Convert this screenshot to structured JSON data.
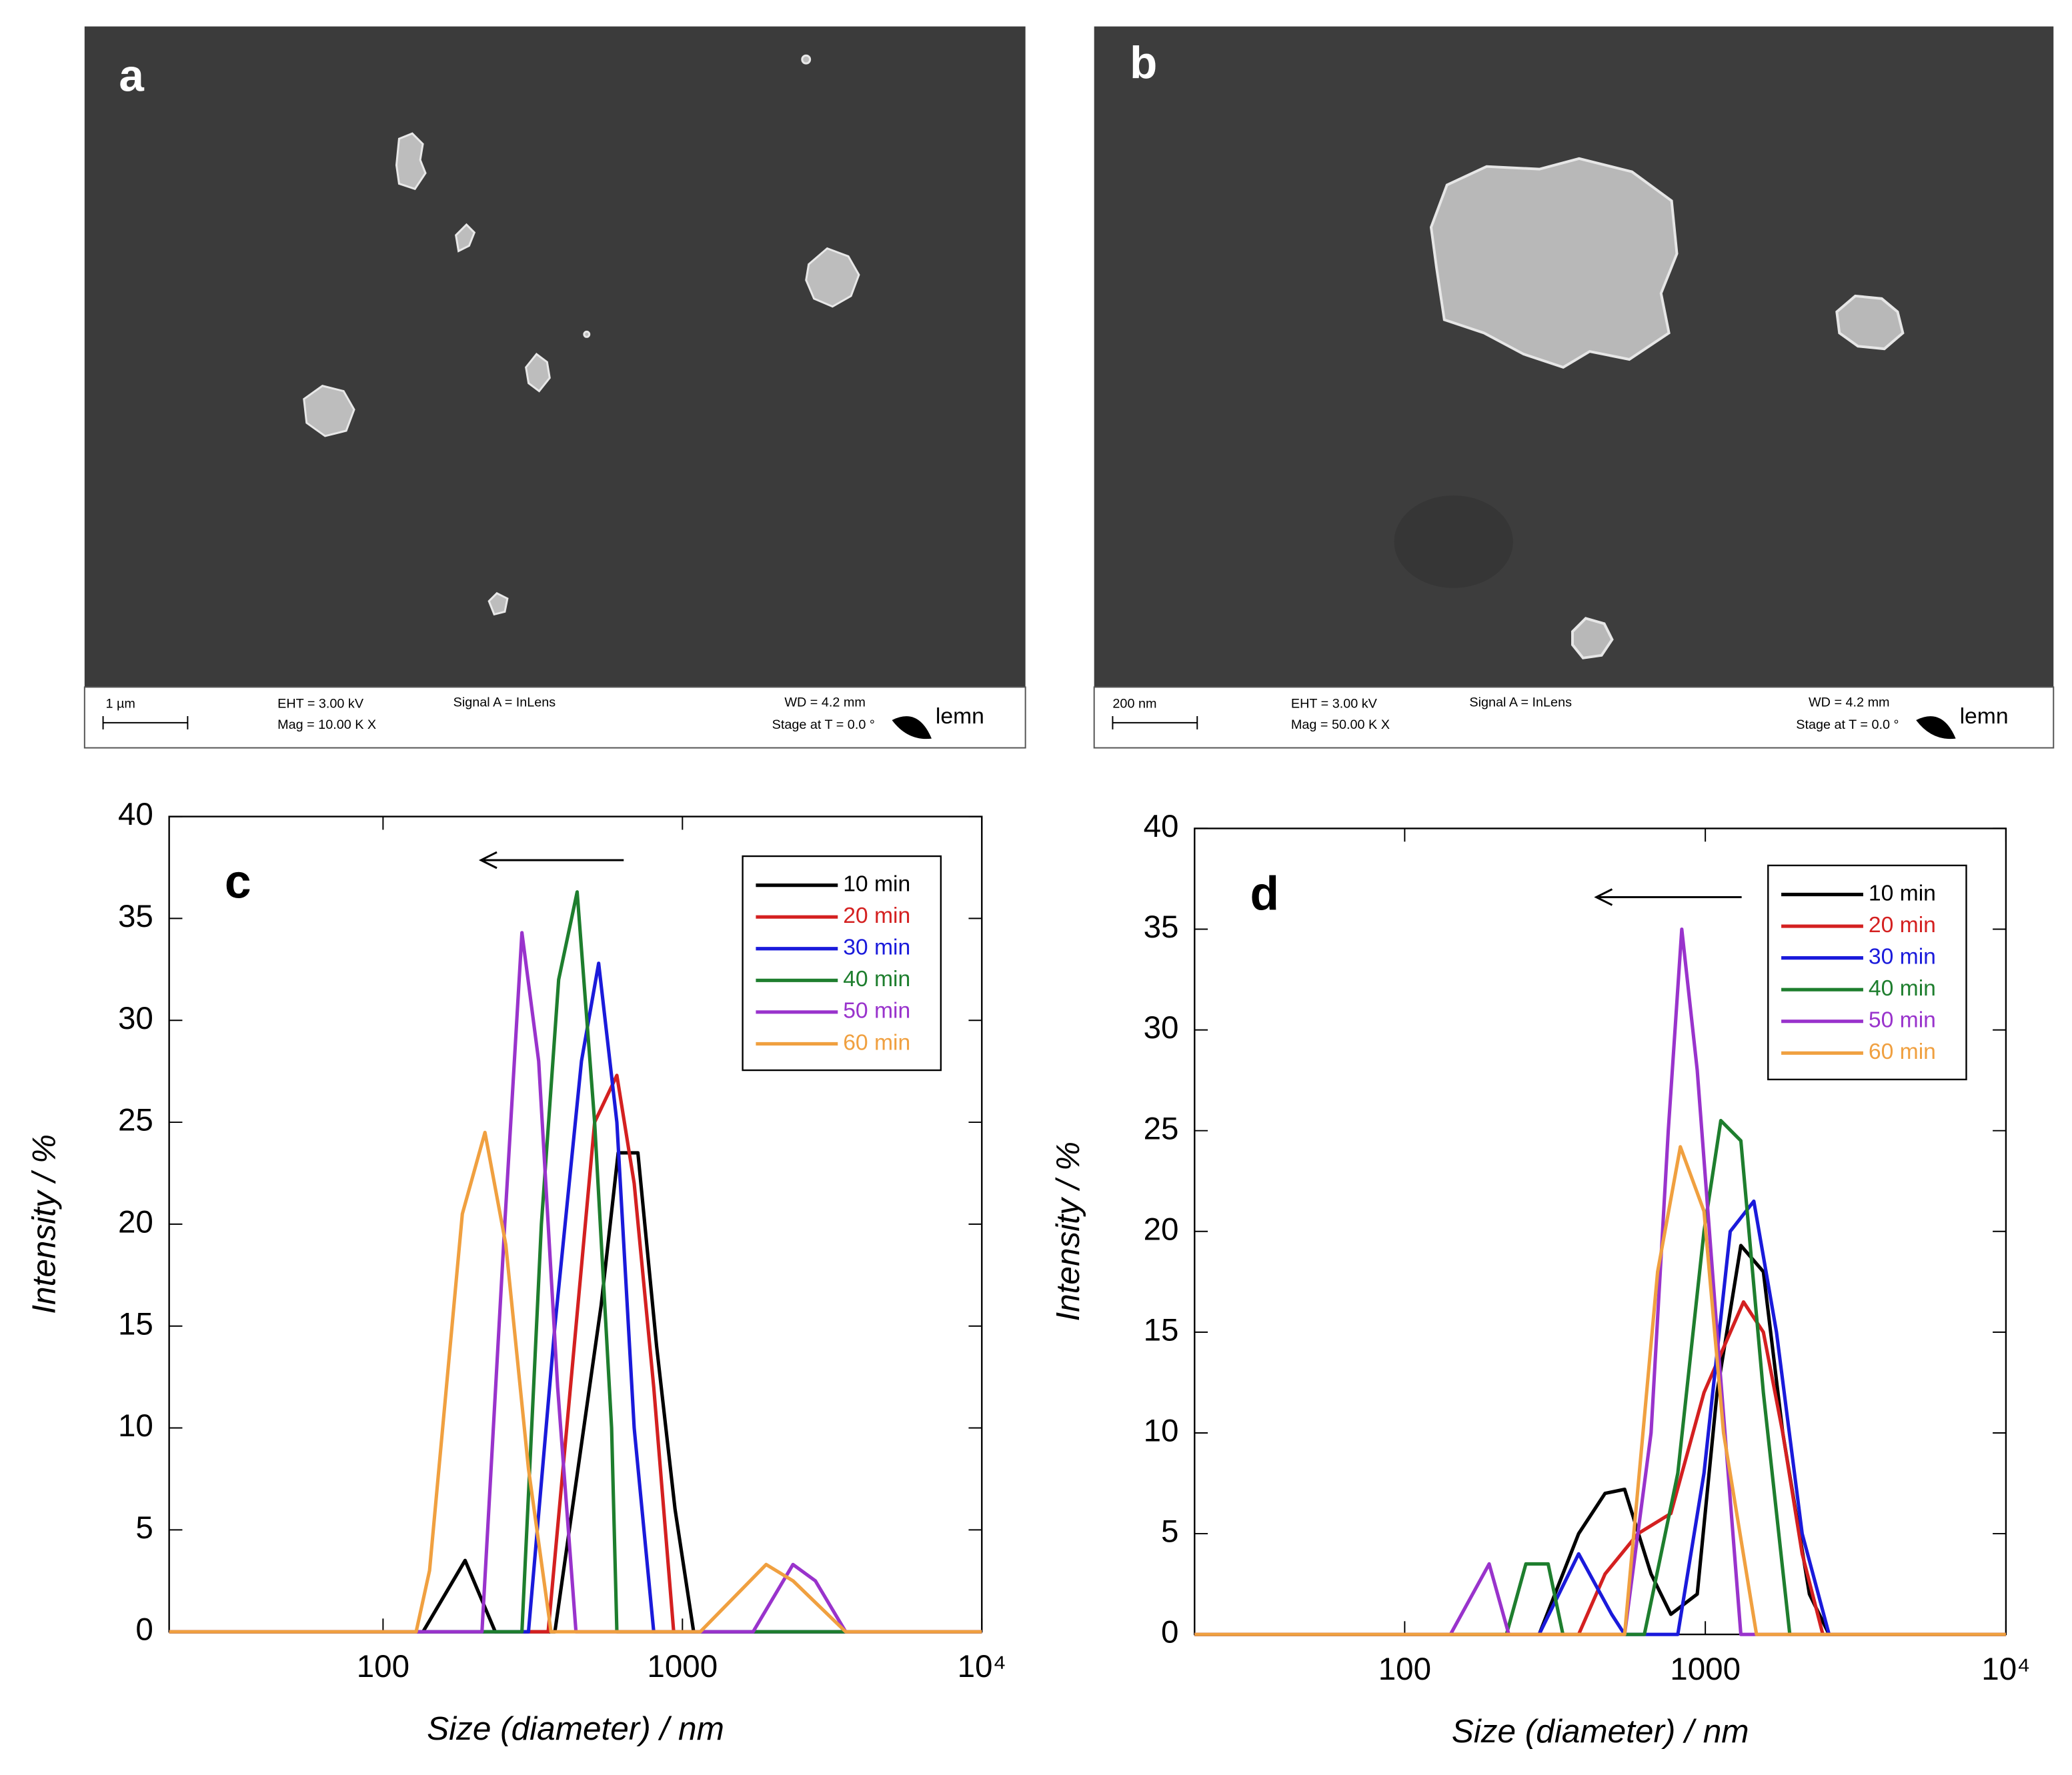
{
  "panels": [
    {
      "label": "a",
      "scale_bar": "1 µm",
      "eht": "EHT = 3.00 kV",
      "mag": "Mag = 10.00 K X",
      "signal": "Signal A = InLens",
      "wd": "WD = 4.2 mm",
      "stage": "Stage at T = 0.0 °",
      "logo": "lemn"
    },
    {
      "label": "b",
      "scale_bar": "200 nm",
      "eht": "EHT = 3.00 kV",
      "mag": "Mag = 50.00 K X",
      "signal": "Signal A = InLens",
      "wd": "WD = 4.2 mm",
      "stage": "Stage at T = 0.0 °",
      "logo": "lemn"
    }
  ],
  "chart_data": [
    {
      "type": "line",
      "panel_label": "c",
      "xlabel": "Size (diameter) / nm",
      "ylabel": "Intensity / %",
      "x_scale": "log",
      "xlim": [
        19.3,
        10000
      ],
      "ylim": [
        0,
        40
      ],
      "xticks": [
        100,
        1000,
        {
          "value": 10000,
          "label": "10⁴"
        }
      ],
      "yticks": [
        0,
        5,
        10,
        15,
        20,
        25,
        30,
        35,
        40
      ],
      "legend": "upper right",
      "series": [
        {
          "name": "10 min",
          "color": "#000000",
          "x": [
            19.3,
            136,
            188,
            237,
            375,
            535,
            610,
            710,
            820,
            945,
            1090,
            10000
          ],
          "values": [
            0,
            0,
            3.5,
            0,
            0,
            16,
            23.5,
            23.5,
            14,
            6,
            0,
            0
          ]
        },
        {
          "name": "20 min",
          "color": "#d42020",
          "x": [
            19.3,
            356,
            509,
            604,
            690,
            802,
            935,
            10000
          ],
          "values": [
            0,
            0,
            25,
            27.3,
            22,
            12,
            0,
            0
          ]
        },
        {
          "name": "30 min",
          "color": "#1a1adb",
          "x": [
            19.3,
            306,
            375,
            460,
            525,
            604,
            690,
            802,
            10000
          ],
          "values": [
            0,
            0,
            15,
            28,
            32.8,
            25,
            10,
            0,
            0
          ]
        },
        {
          "name": "40 min",
          "color": "#1e7e2e",
          "x": [
            19.3,
            291,
            338,
            386,
            445,
            509,
            580,
            604,
            10000
          ],
          "values": [
            0,
            0,
            20,
            32,
            36.3,
            25,
            10,
            0,
            0
          ]
        },
        {
          "name": "50 min",
          "color": "#9933cc",
          "x": [
            19.3,
            214,
            255,
            291,
            331,
            383,
            441,
            1722,
            2340,
            2780,
            3510,
            10000
          ],
          "values": [
            0,
            0,
            20,
            34.3,
            28,
            12,
            0,
            0,
            3.3,
            2.5,
            0,
            0
          ]
        },
        {
          "name": "60 min",
          "color": "#f0a040",
          "x": [
            19.3,
            129,
            143,
            184,
            219,
            257,
            306,
            364,
            1147,
            1904,
            2340,
            3510,
            10000
          ],
          "values": [
            0,
            0,
            3,
            20.5,
            24.5,
            19,
            8,
            0,
            0,
            3.3,
            2.5,
            0,
            0
          ]
        }
      ]
    },
    {
      "type": "line",
      "panel_label": "d",
      "xlabel": "Size (diameter) / nm",
      "ylabel": "Intensity / %",
      "x_scale": "log",
      "xlim": [
        20,
        10000
      ],
      "ylim": [
        0,
        40
      ],
      "xticks": [
        100,
        1000,
        {
          "value": 10000,
          "label": "10⁴"
        }
      ],
      "yticks": [
        0,
        5,
        10,
        15,
        20,
        25,
        30,
        35,
        40
      ],
      "legend": "upper right",
      "series": [
        {
          "name": "10 min",
          "color": "#000000",
          "x": [
            20,
            280,
            379,
            464,
            539,
            660,
            768,
            940,
            1094,
            1313,
            1560,
            1810,
            2220,
            2580,
            10000
          ],
          "values": [
            0,
            0,
            5,
            7,
            7.2,
            3,
            1,
            2,
            12,
            19.3,
            18,
            10,
            2,
            0,
            0
          ]
        },
        {
          "name": "20 min",
          "color": "#d42020",
          "x": [
            20,
            379,
            464,
            597,
            768,
            990,
            1340,
            1560,
            1810,
            2100,
            2460,
            10000
          ],
          "values": [
            0,
            0,
            3,
            5,
            6,
            12,
            16.5,
            15,
            10,
            4,
            0,
            0
          ]
        },
        {
          "name": "30 min",
          "color": "#1a1adb",
          "x": [
            20,
            280,
            379,
            488,
            539,
            810,
            990,
            1210,
            1450,
            1725,
            2100,
            2580,
            10000
          ],
          "values": [
            0,
            0,
            4,
            1,
            0,
            0,
            8,
            20,
            21.5,
            15,
            5,
            0,
            0
          ]
        },
        {
          "name": "40 min",
          "color": "#1e7e2e",
          "x": [
            20,
            218,
            253,
            300,
            336,
            627,
            810,
            990,
            1126,
            1313,
            1560,
            1910,
            10000
          ],
          "values": [
            0,
            0,
            3.5,
            3.5,
            0,
            0,
            8,
            20,
            25.5,
            24.5,
            12,
            0,
            0
          ]
        },
        {
          "name": "50 min",
          "color": "#9933cc",
          "x": [
            20,
            142,
            191,
            222,
            539,
            660,
            753,
            835,
            940,
            1094,
            1313,
            10000
          ],
          "values": [
            0,
            0,
            3.5,
            0,
            0,
            10,
            25,
            35,
            28,
            15,
            0,
            0
          ]
        },
        {
          "name": "60 min",
          "color": "#f0a040",
          "x": [
            20,
            539,
            694,
            826,
            990,
            1150,
            1480,
            10000
          ],
          "values": [
            0,
            0,
            18,
            24.2,
            21,
            10,
            0,
            0
          ]
        }
      ]
    }
  ]
}
